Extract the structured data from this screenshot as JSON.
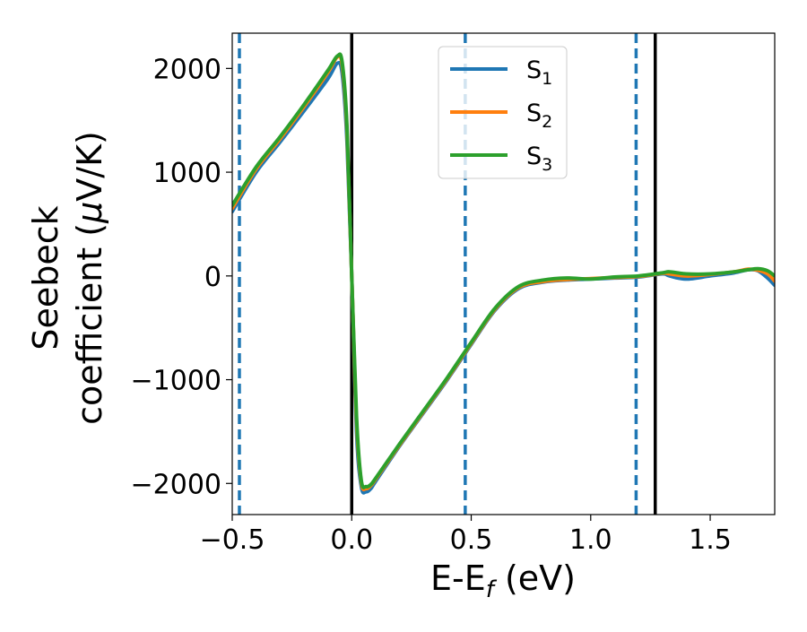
{
  "chart_data": {
    "type": "line",
    "xlabel": "E-E",
    "xlabel_sub": "f",
    "xlabel_unit": " (eV)",
    "ylabel_line1": "Seebeck",
    "ylabel_line2_pre": "coefficient  (",
    "ylabel_mu": "μ",
    "ylabel_line2_post": "V/K)",
    "xlim": [
      -0.5,
      1.77
    ],
    "ylim": [
      -2300,
      2340
    ],
    "xticks": [
      -0.5,
      0.0,
      0.5,
      1.0,
      1.5
    ],
    "xtick_labels": [
      "−0.5",
      "0.0",
      "0.5",
      "1.0",
      "1.5"
    ],
    "yticks": [
      -2000,
      -1000,
      0,
      1000,
      2000
    ],
    "ytick_labels": [
      "−2000",
      "−1000",
      "0",
      "1000",
      "2000"
    ],
    "grid": false,
    "legend_position": "top-center",
    "vlines_solid": [
      0.0,
      1.27
    ],
    "vlines_dashed": [
      -0.47,
      0.475,
      1.19
    ],
    "vline_solid_color": "#000000",
    "vline_dashed_color": "#1f77b4",
    "series": [
      {
        "name": "S",
        "sub": "1",
        "color": "#1f77b4",
        "x": [
          -0.5,
          -0.4,
          -0.3,
          -0.2,
          -0.1,
          -0.06,
          -0.04,
          -0.02,
          0.0,
          0.02,
          0.04,
          0.06,
          0.08,
          0.1,
          0.2,
          0.3,
          0.4,
          0.5,
          0.6,
          0.7,
          0.8,
          0.9,
          1.0,
          1.1,
          1.2,
          1.3,
          1.33,
          1.4,
          1.5,
          1.6,
          1.66,
          1.7,
          1.74,
          1.77
        ],
        "y": [
          620,
          1000,
          1290,
          1590,
          1900,
          2050,
          1950,
          1300,
          0,
          -1500,
          -2030,
          -2080,
          -2050,
          -1980,
          -1640,
          -1320,
          -1000,
          -660,
          -330,
          -120,
          -60,
          -40,
          -30,
          -20,
          -10,
          20,
          0,
          -30,
          0,
          30,
          60,
          50,
          -20,
          -90
        ]
      },
      {
        "name": "S",
        "sub": "2",
        "color": "#ff7f0e",
        "x": [
          -0.5,
          -0.4,
          -0.3,
          -0.2,
          -0.1,
          -0.06,
          -0.04,
          -0.02,
          0.0,
          0.02,
          0.04,
          0.06,
          0.08,
          0.1,
          0.2,
          0.3,
          0.4,
          0.5,
          0.6,
          0.7,
          0.8,
          0.9,
          1.0,
          1.1,
          1.2,
          1.3,
          1.33,
          1.4,
          1.5,
          1.6,
          1.66,
          1.7,
          1.74,
          1.77
        ],
        "y": [
          650,
          1030,
          1320,
          1630,
          1960,
          2110,
          2030,
          1400,
          0,
          -1400,
          -1990,
          -2050,
          -2020,
          -1960,
          -1630,
          -1310,
          -990,
          -650,
          -320,
          -110,
          -55,
          -35,
          -25,
          -15,
          -5,
          25,
          20,
          0,
          15,
          40,
          65,
          55,
          20,
          -50
        ]
      },
      {
        "name": "S",
        "sub": "3",
        "color": "#2ca02c",
        "x": [
          -0.5,
          -0.4,
          -0.3,
          -0.2,
          -0.1,
          -0.06,
          -0.04,
          -0.02,
          0.0,
          0.02,
          0.04,
          0.06,
          0.08,
          0.1,
          0.2,
          0.3,
          0.4,
          0.5,
          0.6,
          0.7,
          0.8,
          0.9,
          1.0,
          1.1,
          1.2,
          1.3,
          1.33,
          1.4,
          1.5,
          1.6,
          1.66,
          1.7,
          1.74,
          1.77
        ],
        "y": [
          680,
          1050,
          1340,
          1650,
          1980,
          2120,
          2060,
          1450,
          0,
          -1350,
          -1970,
          -2030,
          -2010,
          -1950,
          -1620,
          -1300,
          -980,
          -640,
          -310,
          -100,
          -40,
          -20,
          -30,
          -10,
          0,
          30,
          40,
          20,
          20,
          40,
          60,
          70,
          50,
          0
        ]
      }
    ]
  }
}
